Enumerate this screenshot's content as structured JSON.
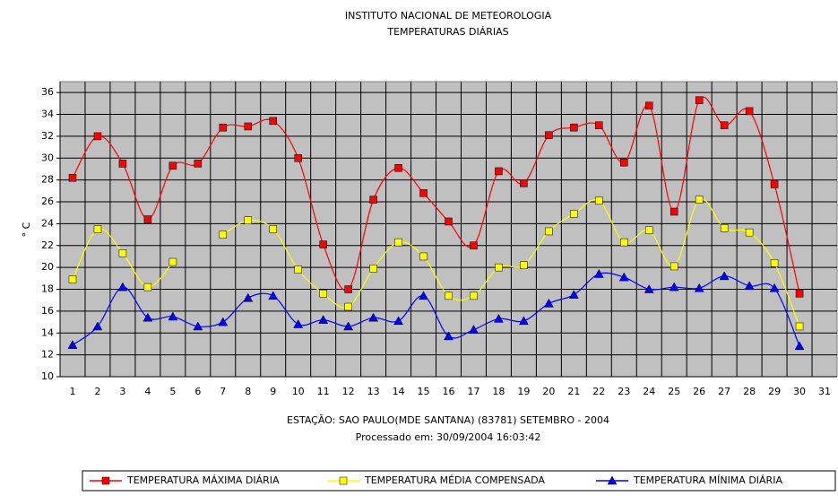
{
  "chart_data": {
    "type": "line",
    "title": "INSTITUTO NACIONAL DE METEOROLOGIA",
    "subtitle": "TEMPERATURAS DIÁRIAS",
    "y_label": "° C",
    "x_label": "ESTAÇÃO: SAO PAULO(MDE SANTANA) (83781) SETEMBRO - 2004",
    "note": "Processado em: 30/09/2004 16:03:42",
    "categories": [
      1,
      2,
      3,
      4,
      5,
      6,
      7,
      8,
      9,
      10,
      11,
      12,
      13,
      14,
      15,
      16,
      17,
      18,
      19,
      20,
      21,
      22,
      23,
      24,
      25,
      26,
      27,
      28,
      29,
      30,
      31
    ],
    "series": [
      {
        "name": "TEMPERATURA MÁXIMA DIÁRIA",
        "color": "#ff0000",
        "marker": "square",
        "values": [
          28.2,
          32,
          29.5,
          24.4,
          29.3,
          29.5,
          32.8,
          32.9,
          33.4,
          30,
          22.1,
          18,
          26.2,
          29.1,
          26.8,
          24.2,
          22,
          28.8,
          27.7,
          32.1,
          32.8,
          33,
          29.6,
          34.8,
          25.1,
          35.3,
          33,
          34.3,
          27.6,
          17.6,
          null
        ]
      },
      {
        "name": "TEMPERATURA MÉDIA COMPENSADA",
        "color": "#ffff00",
        "marker": "square",
        "values": [
          18.9,
          23.5,
          21.3,
          18.2,
          20.5,
          null,
          23,
          24.3,
          23.5,
          19.8,
          17.6,
          16.4,
          19.9,
          22.3,
          21,
          17.4,
          17.4,
          20,
          20.2,
          23.3,
          24.9,
          26.1,
          22.3,
          23.4,
          20.1,
          26.2,
          23.6,
          23.2,
          20.4,
          14.6,
          null
        ]
      },
      {
        "name": "TEMPERATURA MÍNIMA DIÁRIA",
        "color": "#0000ff",
        "marker": "triangle",
        "values": [
          12.9,
          14.6,
          18.2,
          15.4,
          15.5,
          14.6,
          15,
          17.2,
          17.4,
          14.8,
          15.2,
          14.6,
          15.4,
          15.1,
          17.4,
          13.7,
          14.3,
          15.3,
          15.1,
          16.7,
          17.5,
          19.4,
          19.1,
          18,
          18.2,
          18.1,
          19.2,
          18.3,
          18.1,
          12.8,
          null
        ]
      }
    ],
    "ylim": [
      10,
      37
    ],
    "yticks": [
      10,
      12,
      14,
      16,
      18,
      20,
      22,
      24,
      26,
      28,
      30,
      32,
      34,
      36
    ],
    "grid": true,
    "background": "#c0c0c0",
    "legend": "bottom"
  }
}
